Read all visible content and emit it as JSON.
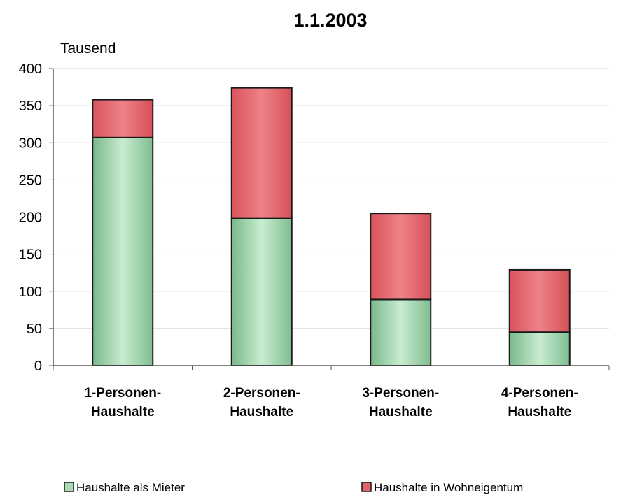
{
  "chart_data": {
    "type": "bar",
    "stacked": true,
    "title": "1.1.2003",
    "ylabel": "Tausend",
    "xlabel": "",
    "ylim": [
      0,
      400
    ],
    "yticks": [
      0,
      50,
      100,
      150,
      200,
      250,
      300,
      350,
      400
    ],
    "grid": true,
    "legend_position": "bottom",
    "categories": [
      [
        "1-Personen-",
        "Haushalte"
      ],
      [
        "2-Personen-",
        "Haushalte"
      ],
      [
        "3-Personen-",
        "Haushalte"
      ],
      [
        "4-Personen-",
        "Haushalte"
      ]
    ],
    "series": [
      {
        "name": "Haushalte als Mieter",
        "values": [
          307,
          198,
          89,
          45
        ],
        "color": "#a9dcb4"
      },
      {
        "name": "Haushalte in Wohneigentum",
        "values": [
          51,
          176,
          116,
          84
        ],
        "color": "#e0646a"
      }
    ]
  }
}
